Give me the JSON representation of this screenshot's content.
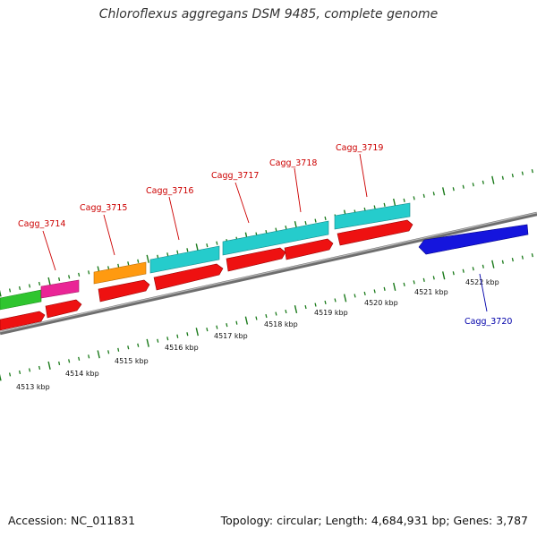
{
  "title": "Chloroflexus aggregans DSM 9485, complete genome",
  "accession": "Accession: NC_011831",
  "topology": "Topology: circular; Length: 4,684,931 bp; Genes: 3,787",
  "scale_labels": [
    "4513 kbp",
    "4514 kbp",
    "4515 kbp",
    "4516 kbp",
    "4517 kbp",
    "4518 kbp",
    "4519 kbp",
    "4520 kbp",
    "4521 kbp",
    "4522 kbp"
  ],
  "genes": [
    {
      "label": "Cagg_3714",
      "color": "#cc0000"
    },
    {
      "label": "Cagg_3715",
      "color": "#cc0000"
    },
    {
      "label": "Cagg_3716",
      "color": "#cc0000"
    },
    {
      "label": "Cagg_3717",
      "color": "#cc0000"
    },
    {
      "label": "Cagg_3718",
      "color": "#cc0000"
    },
    {
      "label": "Cagg_3719",
      "color": "#cc0000"
    },
    {
      "label": "Cagg_3720",
      "color": "#0000aa"
    }
  ],
  "colors": {
    "green": "#33cc33",
    "magenta": "#ee2299",
    "orange": "#ff9900",
    "cyan": "#22cccc",
    "red": "#ee1111",
    "blue": "#1111dd",
    "backbone": "#808080",
    "ticks": "#1a7a1a"
  }
}
